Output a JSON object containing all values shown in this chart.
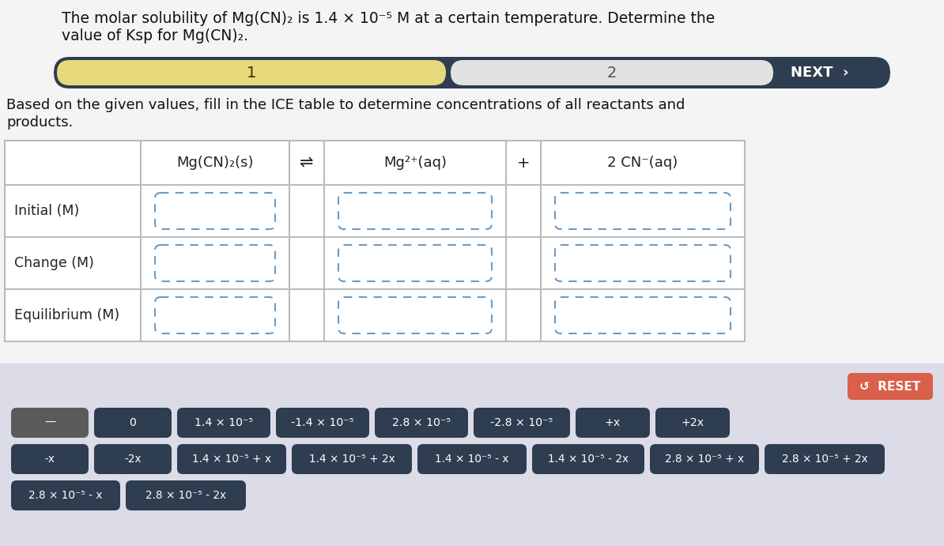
{
  "title_line1": "The molar solubility of Mg(CN)₂ is 1.4 × 10⁻⁵ M at a certain temperature. Determine the",
  "title_line2": "value of Ksp for Mg(CN)₂.",
  "nav_step1": "1",
  "nav_step2": "2",
  "nav_next": "NEXT",
  "row_labels": [
    "Initial (M)",
    "Change (M)",
    "Equilibrium (M)"
  ],
  "col_header1": "Mg(CN)₂(s)",
  "col_header2": "⇌",
  "col_header3": "Mg²⁺(aq)",
  "col_header4": "+",
  "col_header5": "2 CN⁻(aq)",
  "nav_bar_color": "#2e3d4f",
  "nav_active_color": "#e8d87c",
  "nav_active_text": "#3a3000",
  "nav_inactive_color": "#e2e2e2",
  "nav_inactive_text": "#555555",
  "nav_next_color": "#ffffff",
  "table_bg": "#ffffff",
  "table_border_color": "#bbbbbb",
  "cell_border_color": "#6b9cc4",
  "row_label_color": "#222222",
  "instruction_color": "#111111",
  "bottom_bg_color": "#dcdce8",
  "reset_btn_color": "#d9604a",
  "reset_text_color": "#ffffff",
  "tile_bg_dark": "#2e3d4f",
  "tile_bg_grey": "#5a5a5a",
  "tile_text_color": "#ffffff",
  "tiles_row1": [
    "—",
    "0",
    "1.4 × 10⁻⁵",
    "-1.4 × 10⁻⁵",
    "2.8 × 10⁻⁵",
    "-2.8 × 10⁻⁵",
    "+x",
    "+2x"
  ],
  "tiles_row2": [
    "-x",
    "-2x",
    "1.4 × 10⁻⁵ + x",
    "1.4 × 10⁻⁵ + 2x",
    "1.4 × 10⁻⁵ - x",
    "1.4 × 10⁻⁵ - 2x",
    "2.8 × 10⁻⁵ + x",
    "2.8 × 10⁻⁵ + 2x"
  ],
  "tiles_row3": [
    "2.8 × 10⁻⁵ - x",
    "2.8 × 10⁻⁵ - 2x"
  ],
  "bg_color": "#f4f4f4"
}
